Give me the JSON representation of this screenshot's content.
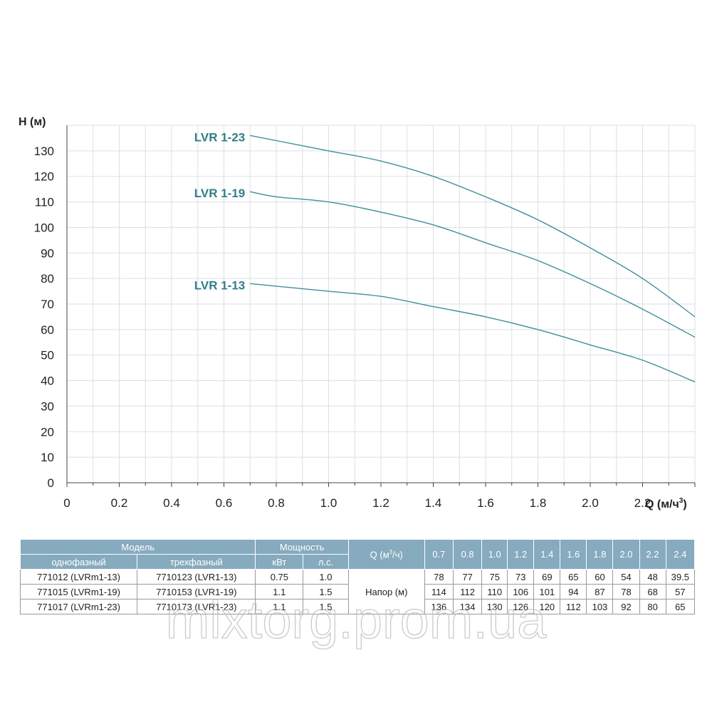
{
  "chart_data": {
    "type": "line",
    "ylabel": "H (м)",
    "xlabel": "Q (м/ч",
    "xlabel_sup": "3",
    "xlabel_close": ")",
    "xlim": [
      0,
      2.4
    ],
    "ylim": [
      0,
      140
    ],
    "grid": true,
    "x_ticks": [
      "0",
      "0.2",
      "0.4",
      "0.6",
      "0.8",
      "1.0",
      "1.2",
      "1.4",
      "1.6",
      "1.8",
      "2.0",
      "2.2"
    ],
    "y_ticks": [
      "0",
      "10",
      "20",
      "30",
      "40",
      "50",
      "60",
      "70",
      "80",
      "90",
      "100",
      "110",
      "120",
      "130"
    ],
    "x": [
      0.7,
      0.8,
      1.0,
      1.2,
      1.4,
      1.6,
      1.8,
      2.0,
      2.2,
      2.4
    ],
    "series": [
      {
        "name": "LVR 1-23",
        "values": [
          136,
          134,
          130,
          126,
          120,
          112,
          103,
          92,
          80,
          65
        ]
      },
      {
        "name": "LVR 1-19",
        "values": [
          114,
          112,
          110,
          106,
          101,
          94,
          87,
          78,
          68,
          57
        ]
      },
      {
        "name": "LVR 1-13",
        "values": [
          78,
          77,
          75,
          73,
          69,
          65,
          60,
          54,
          48,
          39.5
        ]
      }
    ],
    "line_color": "#3f8f9a",
    "label_color": "#2f7f89"
  },
  "table": {
    "header_model": "Модель",
    "header_single_phase": "однофазный",
    "header_three_phase": "трехфазный",
    "header_power": "Мощность",
    "header_kw": "кВт",
    "header_hp": "л.с.",
    "header_q": "Q (м",
    "header_q_sup": "3",
    "header_q_unit": "/ч)",
    "q_values": [
      "0.7",
      "0.8",
      "1.0",
      "1.2",
      "1.4",
      "1.6",
      "1.8",
      "2.0",
      "2.2",
      "2.4"
    ],
    "head_label": "Напор (м)",
    "rows": [
      {
        "single": "771012 (LVRm1-13)",
        "three": "7710123 (LVR1-13)",
        "kw": "0.75",
        "hp": "1.0",
        "heads": [
          "78",
          "77",
          "75",
          "73",
          "69",
          "65",
          "60",
          "54",
          "48",
          "39.5"
        ]
      },
      {
        "single": "771015 (LVRm1-19)",
        "three": "7710153 (LVR1-19)",
        "kw": "1.1",
        "hp": "1.5",
        "heads": [
          "114",
          "112",
          "110",
          "106",
          "101",
          "94",
          "87",
          "78",
          "68",
          "57"
        ]
      },
      {
        "single": "771017 (LVRm1-23)",
        "three": "7710173 (LVR1-23)",
        "kw": "1.1",
        "hp": "1.5",
        "heads": [
          "136",
          "134",
          "130",
          "126",
          "120",
          "112",
          "103",
          "92",
          "80",
          "65"
        ]
      }
    ],
    "header_bg": "#86aabe"
  },
  "watermark": "mixtorg.prom.ua"
}
